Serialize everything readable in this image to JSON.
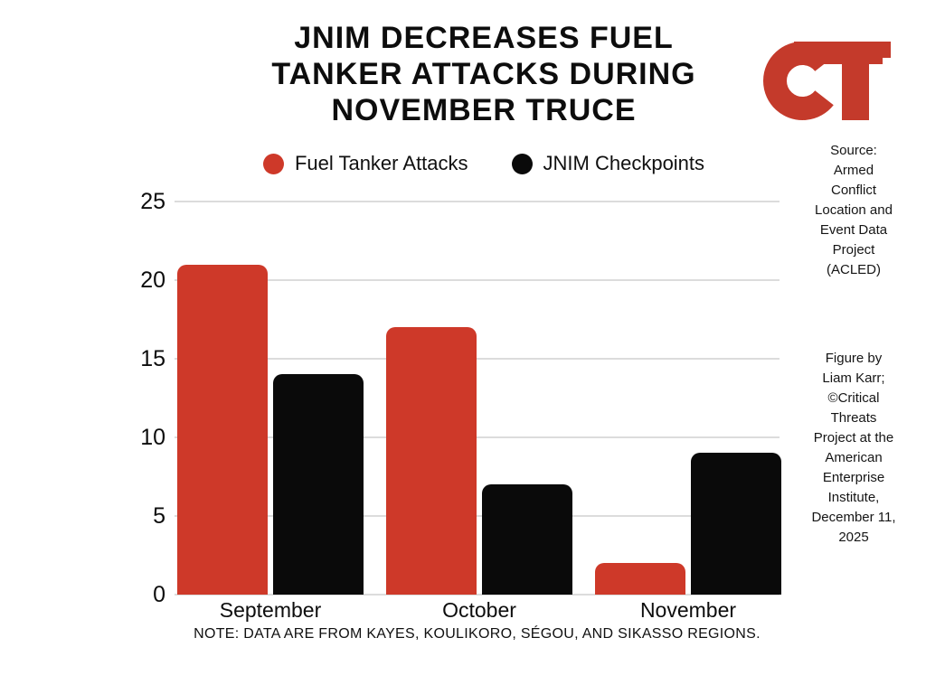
{
  "title": {
    "lines": [
      "JNIM DECREASES FUEL",
      "TANKER ATTACKS DURING",
      "NOVEMBER TRUCE"
    ]
  },
  "logo": {
    "name": "CT",
    "description": "Critical Threats CT monogram",
    "color": "#C43A2B"
  },
  "legend": [
    {
      "label": "Fuel Tanker Attacks",
      "color": "#CE3929"
    },
    {
      "label": "JNIM Checkpoints",
      "color": "#0A0A0A"
    }
  ],
  "chart_data": {
    "type": "bar",
    "title": "JNIM Decreases Fuel Tanker Attacks During November Truce",
    "categories": [
      "September",
      "October",
      "November"
    ],
    "series": [
      {
        "name": "Fuel Tanker Attacks",
        "color": "#CE3929",
        "values": [
          21,
          17,
          2
        ]
      },
      {
        "name": "JNIM Checkpoints",
        "color": "#0A0A0A",
        "values": [
          14,
          7,
          9
        ]
      }
    ],
    "xlabel": "",
    "ylabel": "",
    "ylim": [
      0,
      25
    ],
    "yticks": [
      0,
      5,
      10,
      15,
      20,
      25
    ],
    "grid": true,
    "legend_position": "top"
  },
  "annotations": {
    "source": {
      "lines": [
        "Source:",
        "Armed",
        "Conflict",
        "Location and",
        "Event Data",
        "Project",
        "(ACLED)"
      ]
    },
    "credit": {
      "lines": [
        "Figure by",
        "Liam Karr;",
        "©Critical",
        "Threats",
        "Project at the",
        "American",
        "Enterprise",
        "Institute,",
        "December 11,",
        "2025"
      ]
    }
  },
  "note": "NOTE: DATA ARE FROM KAYES, KOULIKORO, SÉGOU, AND SIKASSO REGIONS."
}
